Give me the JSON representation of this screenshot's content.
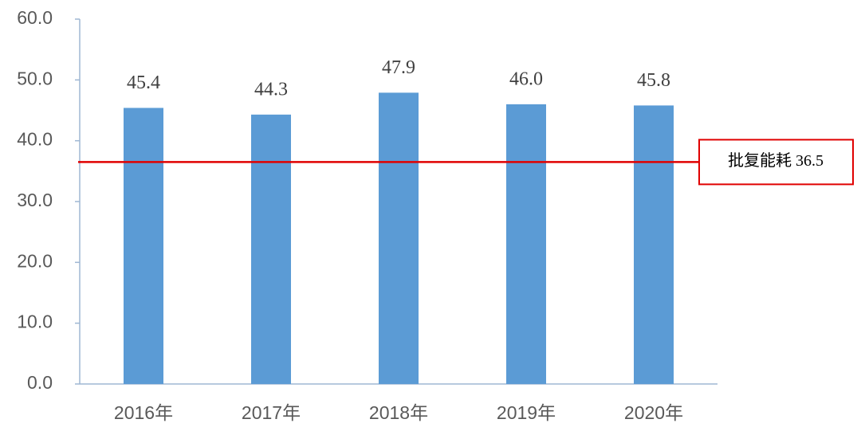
{
  "chart_data": {
    "type": "bar",
    "categories": [
      "2016年",
      "2017年",
      "2018年",
      "2019年",
      "2020年"
    ],
    "values": [
      45.4,
      44.3,
      47.9,
      46.0,
      45.8
    ],
    "value_labels": [
      "45.4",
      "44.3",
      "47.9",
      "46.0",
      "45.8"
    ],
    "color": "#5b9bd5",
    "ylim": [
      0,
      60
    ],
    "yticks": [
      {
        "value": 0,
        "label": "0.0"
      },
      {
        "value": 10,
        "label": "10.0"
      },
      {
        "value": 20,
        "label": "20.0"
      },
      {
        "value": 30,
        "label": "30.0"
      },
      {
        "value": 40,
        "label": "40.0"
      },
      {
        "value": 50,
        "label": "50.0"
      },
      {
        "value": 60,
        "label": "60.0"
      }
    ],
    "grid": false,
    "reference_line": {
      "value": 36.5,
      "label": "批复能耗 36.5",
      "color": "#e00000"
    }
  }
}
